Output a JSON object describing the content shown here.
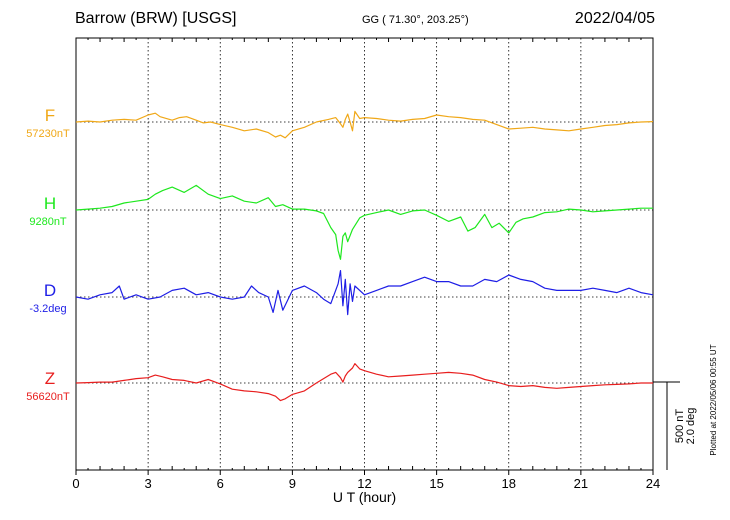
{
  "header": {
    "station": "Barrow (BRW)  [USGS]",
    "coords": "GG ( 71.30°, 203.25°)",
    "date": "2022/04/05"
  },
  "plotted_note": "Plotted at 2022/05/06 00:55 UT",
  "scale": {
    "nt_label": "500 nT",
    "deg_label": "2.0 deg"
  },
  "chart_data": {
    "type": "line",
    "title": "Barrow (BRW)  [USGS]",
    "xlabel": "U T (hour)",
    "ylabel": "",
    "xlim": [
      0,
      24
    ],
    "x_ticks": [
      0,
      3,
      6,
      9,
      12,
      15,
      18,
      21,
      24
    ],
    "grid": "dotted vertical every 3 h",
    "scale_bar": {
      "nT": 500,
      "deg": 2.0
    },
    "series": [
      {
        "name": "F",
        "baseline_label": "57230nT",
        "unit": "nT",
        "baseline": 57230,
        "color": "#f0a818",
        "x": [
          0,
          0.5,
          1,
          1.5,
          2,
          2.5,
          3,
          3.3,
          3.5,
          4,
          4.3,
          4.6,
          5,
          5.3,
          5.6,
          6,
          6.5,
          7,
          7.5,
          8,
          8.3,
          8.5,
          8.7,
          9,
          9.5,
          10,
          10.5,
          10.8,
          11,
          11.1,
          11.2,
          11.3,
          11.4,
          11.5,
          11.6,
          11.8,
          12,
          12.5,
          13,
          13.5,
          14,
          14.5,
          15,
          15.5,
          16,
          16.5,
          17,
          17.5,
          18,
          18.5,
          19,
          19.5,
          20,
          20.5,
          21,
          21.5,
          22,
          22.5,
          23,
          23.5,
          24
        ],
        "values": [
          57230,
          57235,
          57230,
          57240,
          57245,
          57240,
          57270,
          57280,
          57260,
          57240,
          57255,
          57260,
          57240,
          57225,
          57230,
          57215,
          57200,
          57180,
          57190,
          57170,
          57145,
          57155,
          57140,
          57180,
          57200,
          57230,
          57245,
          57255,
          57220,
          57200,
          57245,
          57275,
          57230,
          57180,
          57290,
          57250,
          57255,
          57250,
          57240,
          57235,
          57245,
          57250,
          57270,
          57260,
          57255,
          57245,
          57240,
          57215,
          57190,
          57195,
          57200,
          57190,
          57185,
          57180,
          57190,
          57200,
          57210,
          57215,
          57225,
          57230,
          57232
        ]
      },
      {
        "name": "H",
        "baseline_label": "9280nT",
        "unit": "nT",
        "baseline": 9280,
        "color": "#1ee81e",
        "x": [
          0,
          0.5,
          1,
          1.5,
          2,
          2.5,
          3,
          3.3,
          3.6,
          4,
          4.5,
          5,
          5.5,
          6,
          6.5,
          7,
          7.5,
          8,
          8.3,
          8.6,
          9,
          9.5,
          10,
          10.3,
          10.6,
          10.8,
          10.9,
          11,
          11.1,
          11.2,
          11.3,
          11.5,
          11.8,
          12,
          12.5,
          13,
          13.5,
          14,
          14.5,
          15,
          15.5,
          16,
          16.3,
          16.6,
          17,
          17.3,
          17.6,
          18,
          18.3,
          18.6,
          19,
          19.5,
          20,
          20.5,
          21,
          21.5,
          22,
          22.5,
          23,
          23.5,
          24
        ],
        "values": [
          9280,
          9285,
          9290,
          9300,
          9320,
          9330,
          9340,
          9370,
          9390,
          9410,
          9380,
          9420,
          9370,
          9345,
          9360,
          9330,
          9320,
          9350,
          9300,
          9310,
          9285,
          9285,
          9275,
          9260,
          9180,
          9140,
          9050,
          9000,
          9130,
          9150,
          9100,
          9170,
          9235,
          9250,
          9265,
          9280,
          9255,
          9275,
          9280,
          9250,
          9215,
          9240,
          9160,
          9180,
          9255,
          9180,
          9205,
          9150,
          9210,
          9230,
          9240,
          9265,
          9270,
          9285,
          9280,
          9270,
          9275,
          9280,
          9285,
          9290,
          9290
        ]
      },
      {
        "name": "D",
        "baseline_label": "-3.2deg",
        "unit": "deg",
        "baseline": -3.2,
        "color": "#1e1ee6",
        "x": [
          0,
          0.5,
          1,
          1.5,
          1.8,
          2,
          2.5,
          3,
          3.5,
          4,
          4.5,
          5,
          5.5,
          6,
          6.5,
          7,
          7.3,
          7.6,
          8,
          8.2,
          8.4,
          8.6,
          9,
          9.5,
          10,
          10.3,
          10.6,
          10.9,
          11,
          11.1,
          11.2,
          11.3,
          11.4,
          11.5,
          11.6,
          12,
          12.5,
          13,
          13.5,
          14,
          14.5,
          15,
          15.5,
          16,
          16.5,
          17,
          17.5,
          18,
          18.5,
          19,
          19.5,
          20,
          20.5,
          21,
          21.5,
          22,
          22.5,
          23,
          23.5,
          24
        ],
        "values": [
          -3.2,
          -3.25,
          -3.15,
          -3.1,
          -2.95,
          -3.25,
          -3.15,
          -3.25,
          -3.2,
          -3.05,
          -3.0,
          -3.15,
          -3.1,
          -3.2,
          -3.25,
          -3.2,
          -2.95,
          -3.1,
          -3.2,
          -3.55,
          -3.05,
          -3.5,
          -3.05,
          -2.95,
          -3.1,
          -3.25,
          -3.35,
          -2.9,
          -2.6,
          -3.4,
          -2.8,
          -3.6,
          -2.9,
          -3.3,
          -2.95,
          -3.15,
          -3.05,
          -2.95,
          -2.95,
          -2.85,
          -2.75,
          -2.85,
          -2.85,
          -2.95,
          -2.95,
          -2.8,
          -2.85,
          -2.7,
          -2.8,
          -2.85,
          -3.0,
          -3.05,
          -3.05,
          -3.05,
          -3.0,
          -3.05,
          -3.1,
          -3.0,
          -3.1,
          -3.15
        ]
      },
      {
        "name": "Z",
        "baseline_label": "56620nT",
        "unit": "nT",
        "baseline": 56620,
        "color": "#e81e1e",
        "x": [
          0,
          0.5,
          1,
          1.5,
          2,
          2.5,
          3,
          3.3,
          3.6,
          4,
          4.5,
          5,
          5.5,
          6,
          6.5,
          7,
          7.5,
          8,
          8.3,
          8.5,
          8.7,
          9,
          9.5,
          10,
          10.3,
          10.6,
          10.8,
          11,
          11.1,
          11.2,
          11.3,
          11.5,
          11.6,
          11.8,
          12,
          12.5,
          13,
          13.5,
          14,
          14.5,
          15,
          15.5,
          16,
          16.5,
          17,
          17.5,
          18,
          18.5,
          19,
          19.5,
          20,
          20.5,
          21,
          21.5,
          22,
          22.5,
          23,
          23.5,
          24
        ],
        "values": [
          56620,
          56622,
          56625,
          56625,
          56635,
          56645,
          56650,
          56665,
          56655,
          56640,
          56635,
          56620,
          56640,
          56615,
          56585,
          56575,
          56570,
          56560,
          56545,
          56520,
          56530,
          56555,
          56575,
          56620,
          56645,
          56670,
          56680,
          56650,
          56625,
          56660,
          56680,
          56705,
          56730,
          56700,
          56690,
          56670,
          56655,
          56660,
          56665,
          56670,
          56675,
          56680,
          56675,
          56665,
          56640,
          56625,
          56605,
          56600,
          56605,
          56595,
          56590,
          56595,
          56600,
          56605,
          56610,
          56612,
          56615,
          56620,
          56620
        ]
      }
    ]
  }
}
